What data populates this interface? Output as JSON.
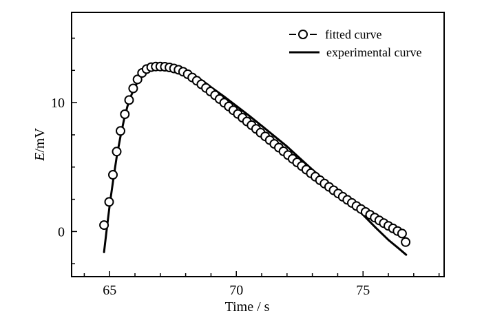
{
  "chart_data": {
    "type": "line",
    "title": "",
    "xlabel": "Time / s",
    "ylabel_italic": "E",
    "ylabel_rest": "/mV",
    "xlim": [
      63.5,
      78.2
    ],
    "ylim": [
      -3.5,
      17
    ],
    "xticks": [
      65,
      70,
      75
    ],
    "yticks": [
      0,
      10
    ],
    "grid": false,
    "legend_position": "top-right",
    "series": [
      {
        "name": "fitted curve",
        "style": "open-circle-markers",
        "x": [
          64.78,
          64.98,
          65.13,
          65.28,
          65.43,
          65.6,
          65.77,
          65.93,
          66.1,
          66.28,
          66.46,
          66.64,
          66.82,
          67.0,
          67.18,
          67.36,
          67.54,
          67.72,
          67.9,
          68.08,
          68.26,
          68.44,
          68.62,
          68.8,
          68.98,
          69.16,
          69.34,
          69.52,
          69.7,
          69.88,
          70.06,
          70.24,
          70.42,
          70.6,
          70.78,
          70.96,
          71.14,
          71.32,
          71.5,
          71.68,
          71.86,
          72.04,
          72.22,
          72.4,
          72.58,
          72.76,
          72.94,
          73.12,
          73.3,
          73.48,
          73.66,
          73.84,
          74.02,
          74.2,
          74.38,
          74.56,
          74.74,
          74.92,
          75.1,
          75.28,
          75.46,
          75.64,
          75.82,
          76.0,
          76.18,
          76.36,
          76.54,
          76.68
        ],
        "values": [
          0.5,
          2.3,
          4.4,
          6.2,
          7.8,
          9.1,
          10.2,
          11.1,
          11.8,
          12.3,
          12.6,
          12.75,
          12.8,
          12.8,
          12.78,
          12.73,
          12.65,
          12.55,
          12.4,
          12.2,
          11.95,
          11.7,
          11.42,
          11.14,
          10.86,
          10.57,
          10.28,
          9.99,
          9.7,
          9.41,
          9.12,
          8.83,
          8.54,
          8.25,
          7.96,
          7.67,
          7.38,
          7.09,
          6.8,
          6.51,
          6.22,
          5.93,
          5.64,
          5.36,
          5.08,
          4.8,
          4.52,
          4.25,
          3.98,
          3.72,
          3.46,
          3.2,
          2.95,
          2.7,
          2.46,
          2.22,
          1.98,
          1.75,
          1.52,
          1.3,
          1.08,
          0.86,
          0.65,
          0.44,
          0.24,
          0.04,
          -0.16,
          -0.82
        ]
      },
      {
        "name": "experimental curve",
        "style": "solid-line",
        "x": [
          64.78,
          64.9,
          65.02,
          65.15,
          65.28,
          65.42,
          65.56,
          65.7,
          65.86,
          66.02,
          66.2,
          66.4,
          66.6,
          66.85,
          67.1,
          67.35,
          67.6,
          67.85,
          68.1,
          68.4,
          68.7,
          69.0,
          69.5,
          70.0,
          70.5,
          71.0,
          71.5,
          72.0,
          72.5,
          73.0,
          73.5,
          74.0,
          74.5,
          75.0,
          75.5,
          76.0,
          76.4,
          76.7
        ],
        "values": [
          -1.6,
          0.4,
          2.3,
          4.1,
          5.8,
          7.3,
          8.6,
          9.7,
          10.6,
          11.3,
          11.9,
          12.35,
          12.6,
          12.75,
          12.8,
          12.78,
          12.7,
          12.55,
          12.35,
          12.05,
          11.65,
          11.2,
          10.5,
          9.75,
          9.0,
          8.2,
          7.4,
          6.6,
          5.7,
          4.8,
          3.95,
          3.1,
          2.2,
          1.3,
          0.3,
          -0.65,
          -1.3,
          -1.8
        ]
      }
    ]
  }
}
